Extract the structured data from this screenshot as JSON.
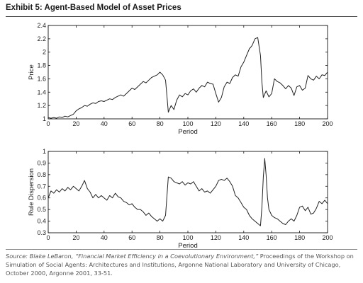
{
  "exhibit_title": "Exhibit 5: Agent-Based Model of Asset Prices",
  "source": {
    "prefix": "Source: Blake LeBaron, “Financial Market Efficiency in a Coevolutionary Environment,” ",
    "body": "Proceedings of the Workshop on Simulation of Social Agents: Architectures and Institutions, Argonne National Laboratory and University of Chicago, October 2000, Argonne 2001, 33-51."
  },
  "colors": {
    "line": "#222222",
    "axis": "#111111"
  },
  "chart_data": [
    {
      "type": "line",
      "title": "",
      "xlabel": "Period",
      "ylabel": "Price",
      "xlim": [
        0,
        200
      ],
      "ylim": [
        1,
        2.4
      ],
      "x_ticks": [
        0,
        20,
        40,
        60,
        80,
        100,
        120,
        140,
        160,
        180,
        200
      ],
      "y_ticks": [
        1,
        1.2,
        1.4,
        1.6,
        1.8,
        2,
        2.2,
        2.4
      ],
      "y_tick_labels": [
        "1",
        "1.2",
        "1.4",
        "1.6",
        "1.8",
        "2",
        "2.2",
        "2.4"
      ],
      "grid": false,
      "series": [
        {
          "x": [
            0,
            2,
            4,
            6,
            8,
            10,
            12,
            14,
            16,
            18,
            20,
            22,
            24,
            26,
            28,
            30,
            32,
            34,
            36,
            38,
            40,
            42,
            44,
            46,
            48,
            50,
            52,
            54,
            56,
            58,
            60,
            62,
            64,
            66,
            68,
            70,
            72,
            74,
            76,
            78,
            80,
            82,
            84,
            85,
            86,
            88,
            90,
            92,
            94,
            96,
            98,
            100,
            102,
            104,
            106,
            108,
            110,
            112,
            114,
            116,
            118,
            120,
            122,
            124,
            126,
            128,
            130,
            132,
            134,
            136,
            138,
            140,
            142,
            144,
            146,
            148,
            150,
            152,
            153,
            154,
            156,
            158,
            160,
            162,
            164,
            166,
            168,
            170,
            172,
            174,
            176,
            178,
            180,
            182,
            184,
            186,
            188,
            190,
            192,
            194,
            196,
            198,
            200
          ],
          "values": [
            1.02,
            1.01,
            1.02,
            1.01,
            1.03,
            1.02,
            1.04,
            1.03,
            1.05,
            1.07,
            1.12,
            1.15,
            1.17,
            1.2,
            1.19,
            1.22,
            1.24,
            1.23,
            1.26,
            1.27,
            1.26,
            1.28,
            1.3,
            1.29,
            1.32,
            1.34,
            1.36,
            1.34,
            1.38,
            1.42,
            1.46,
            1.44,
            1.48,
            1.52,
            1.56,
            1.54,
            1.58,
            1.62,
            1.64,
            1.66,
            1.7,
            1.66,
            1.58,
            1.35,
            1.1,
            1.2,
            1.14,
            1.28,
            1.36,
            1.33,
            1.38,
            1.36,
            1.42,
            1.45,
            1.4,
            1.46,
            1.5,
            1.48,
            1.55,
            1.53,
            1.52,
            1.38,
            1.25,
            1.32,
            1.48,
            1.55,
            1.53,
            1.62,
            1.66,
            1.64,
            1.78,
            1.85,
            1.95,
            2.05,
            2.1,
            2.2,
            2.22,
            1.95,
            1.55,
            1.32,
            1.42,
            1.33,
            1.38,
            1.6,
            1.56,
            1.54,
            1.5,
            1.45,
            1.5,
            1.46,
            1.35,
            1.48,
            1.5,
            1.43,
            1.46,
            1.65,
            1.6,
            1.58,
            1.64,
            1.6,
            1.66,
            1.65,
            1.7
          ]
        }
      ]
    },
    {
      "type": "line",
      "title": "",
      "xlabel": "Period",
      "ylabel": "Rule Dispersion",
      "xlim": [
        0,
        200
      ],
      "ylim": [
        0.3,
        1
      ],
      "x_ticks": [
        0,
        20,
        40,
        60,
        80,
        100,
        120,
        140,
        160,
        180,
        200
      ],
      "y_ticks": [
        0.3,
        0.4,
        0.5,
        0.6,
        0.7,
        0.8,
        0.9,
        1
      ],
      "y_tick_labels": [
        "0.3",
        "0.4",
        "0.5",
        "0.6",
        "0.7",
        "0.8",
        "0.9",
        "1"
      ],
      "grid": false,
      "series": [
        {
          "x": [
            0,
            2,
            4,
            6,
            8,
            10,
            12,
            14,
            16,
            18,
            20,
            22,
            24,
            26,
            28,
            30,
            32,
            34,
            36,
            38,
            40,
            42,
            44,
            46,
            48,
            50,
            52,
            54,
            56,
            58,
            60,
            62,
            64,
            66,
            68,
            70,
            72,
            74,
            76,
            78,
            80,
            82,
            84,
            86,
            88,
            90,
            92,
            94,
            96,
            98,
            100,
            102,
            104,
            106,
            108,
            110,
            112,
            114,
            116,
            118,
            120,
            122,
            124,
            126,
            128,
            130,
            132,
            134,
            136,
            138,
            140,
            142,
            144,
            146,
            148,
            150,
            152,
            153,
            154,
            155,
            156,
            157,
            158,
            160,
            162,
            164,
            166,
            168,
            170,
            172,
            174,
            176,
            178,
            180,
            182,
            184,
            186,
            188,
            190,
            192,
            194,
            196,
            198,
            200
          ],
          "values": [
            0.6,
            0.66,
            0.64,
            0.67,
            0.65,
            0.68,
            0.66,
            0.69,
            0.67,
            0.7,
            0.68,
            0.66,
            0.7,
            0.75,
            0.68,
            0.65,
            0.6,
            0.63,
            0.6,
            0.62,
            0.6,
            0.58,
            0.62,
            0.6,
            0.64,
            0.61,
            0.6,
            0.57,
            0.56,
            0.54,
            0.55,
            0.52,
            0.5,
            0.5,
            0.48,
            0.45,
            0.47,
            0.44,
            0.42,
            0.4,
            0.42,
            0.4,
            0.45,
            0.78,
            0.77,
            0.74,
            0.73,
            0.72,
            0.74,
            0.71,
            0.73,
            0.72,
            0.74,
            0.7,
            0.66,
            0.68,
            0.65,
            0.66,
            0.64,
            0.67,
            0.7,
            0.75,
            0.76,
            0.75,
            0.77,
            0.74,
            0.7,
            0.62,
            0.6,
            0.56,
            0.52,
            0.5,
            0.45,
            0.42,
            0.4,
            0.38,
            0.36,
            0.52,
            0.78,
            0.94,
            0.8,
            0.6,
            0.5,
            0.45,
            0.43,
            0.42,
            0.4,
            0.38,
            0.37,
            0.4,
            0.42,
            0.4,
            0.45,
            0.52,
            0.53,
            0.49,
            0.52,
            0.46,
            0.47,
            0.51,
            0.57,
            0.55,
            0.58,
            0.55
          ]
        }
      ]
    }
  ]
}
